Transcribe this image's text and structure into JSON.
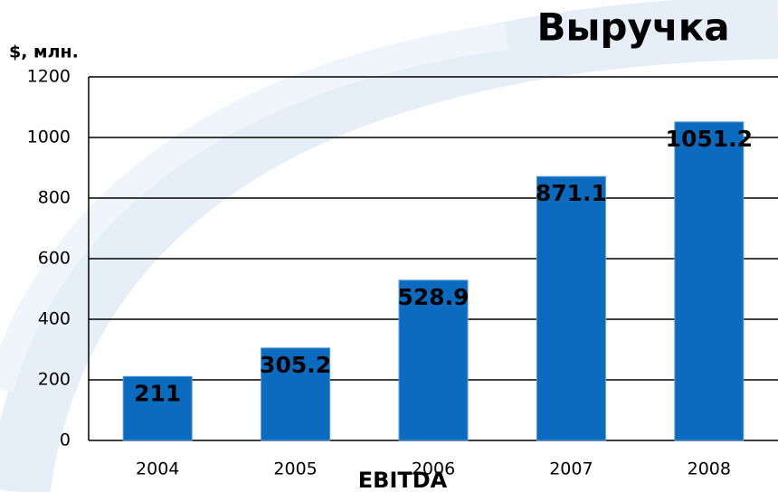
{
  "chart_data": {
    "type": "bar",
    "title": "Выручка",
    "y_label": "$, млн.",
    "x_label": "EBITDA",
    "categories": [
      "2004",
      "2005",
      "2006",
      "2007",
      "2008"
    ],
    "values": [
      211,
      305.2,
      528.9,
      871.1,
      1051.2
    ],
    "color": "#0a6bbf",
    "ylim": [
      0,
      1200
    ],
    "yticks": [
      0,
      200,
      400,
      600,
      800,
      1000,
      1200
    ],
    "grid": true
  }
}
